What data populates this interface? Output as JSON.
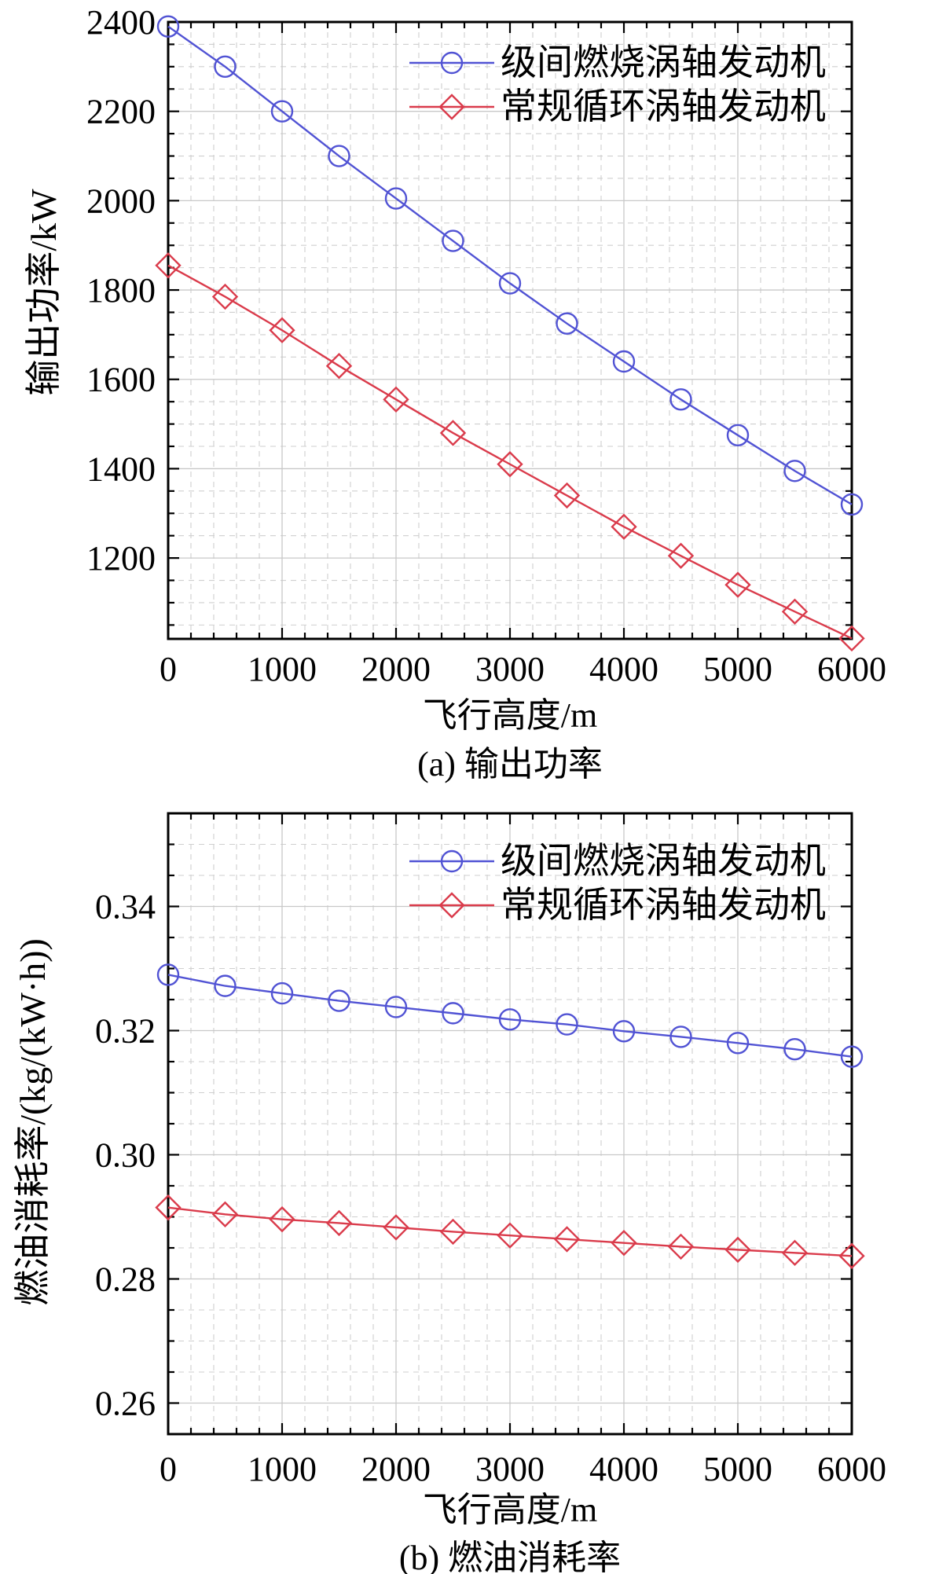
{
  "figure_colors": {
    "series_blue": "#5153d4",
    "series_red": "#da3b4b",
    "grid_major": "#c8c8c8",
    "grid_minor": "#cfcfcf",
    "axis": "#000000"
  },
  "chart_data": [
    {
      "type": "line",
      "title": "(a) 输出功率",
      "xlabel": "飞行高度/m",
      "ylabel": "输出功率/kW",
      "x": [
        0,
        500,
        1000,
        1500,
        2000,
        2500,
        3000,
        3500,
        4000,
        4500,
        5000,
        5500,
        6000
      ],
      "series": [
        {
          "name": "级间燃烧涡轴发动机",
          "marker": "circle",
          "color": "#5153d4",
          "values": [
            2390,
            2300,
            2200,
            2100,
            2005,
            1910,
            1815,
            1725,
            1640,
            1555,
            1475,
            1395,
            1320
          ]
        },
        {
          "name": "常规循环涡轴发动机",
          "marker": "diamond",
          "color": "#da3b4b",
          "values": [
            1855,
            1785,
            1710,
            1630,
            1555,
            1480,
            1410,
            1340,
            1270,
            1205,
            1140,
            1080,
            1020
          ]
        }
      ],
      "xlim": [
        0,
        6000
      ],
      "ylim": [
        1019,
        2400
      ],
      "xticks": [
        0,
        1000,
        2000,
        3000,
        4000,
        5000,
        6000
      ],
      "xtick_labels": [
        "0",
        "1000",
        "2000",
        "3000",
        "4000",
        "5000",
        "6000"
      ],
      "yticks": [
        1200,
        1400,
        1600,
        1800,
        2000,
        2200,
        2400
      ],
      "ytick_labels": [
        "1200",
        "1400",
        "1600",
        "1800",
        "2000",
        "2200",
        "2400"
      ],
      "minor_x_step": 200,
      "minor_y_step": 50,
      "grid": true,
      "legend_position": "upper-right-inside"
    },
    {
      "type": "line",
      "title": "(b) 燃油消耗率",
      "xlabel": "飞行高度/m",
      "ylabel": "燃油消耗率/(kg/(kW·h))",
      "x": [
        0,
        500,
        1000,
        1500,
        2000,
        2500,
        3000,
        3500,
        4000,
        4500,
        5000,
        5500,
        6000
      ],
      "series": [
        {
          "name": "级间燃烧涡轴发动机",
          "marker": "circle",
          "color": "#5153d4",
          "values": [
            0.329,
            0.3272,
            0.326,
            0.3248,
            0.3238,
            0.3228,
            0.3218,
            0.321,
            0.3199,
            0.319,
            0.318,
            0.317,
            0.3158
          ]
        },
        {
          "name": "常规循环涡轴发动机",
          "marker": "diamond",
          "color": "#da3b4b",
          "values": [
            0.2915,
            0.2904,
            0.2896,
            0.289,
            0.2883,
            0.2876,
            0.287,
            0.2864,
            0.2858,
            0.2852,
            0.2847,
            0.2842,
            0.2837
          ]
        }
      ],
      "xlim": [
        0,
        6000
      ],
      "ylim": [
        0.255,
        0.355
      ],
      "xticks": [
        0,
        1000,
        2000,
        3000,
        4000,
        5000,
        6000
      ],
      "xtick_labels": [
        "0",
        "1000",
        "2000",
        "3000",
        "4000",
        "5000",
        "6000"
      ],
      "yticks": [
        0.26,
        0.28,
        0.3,
        0.32,
        0.34
      ],
      "ytick_labels": [
        "0.26",
        "0.28",
        "0.30",
        "0.32",
        "0.34"
      ],
      "minor_x_step": 200,
      "minor_y_step": 0.005,
      "grid": true,
      "legend_position": "upper-right-inside"
    }
  ]
}
